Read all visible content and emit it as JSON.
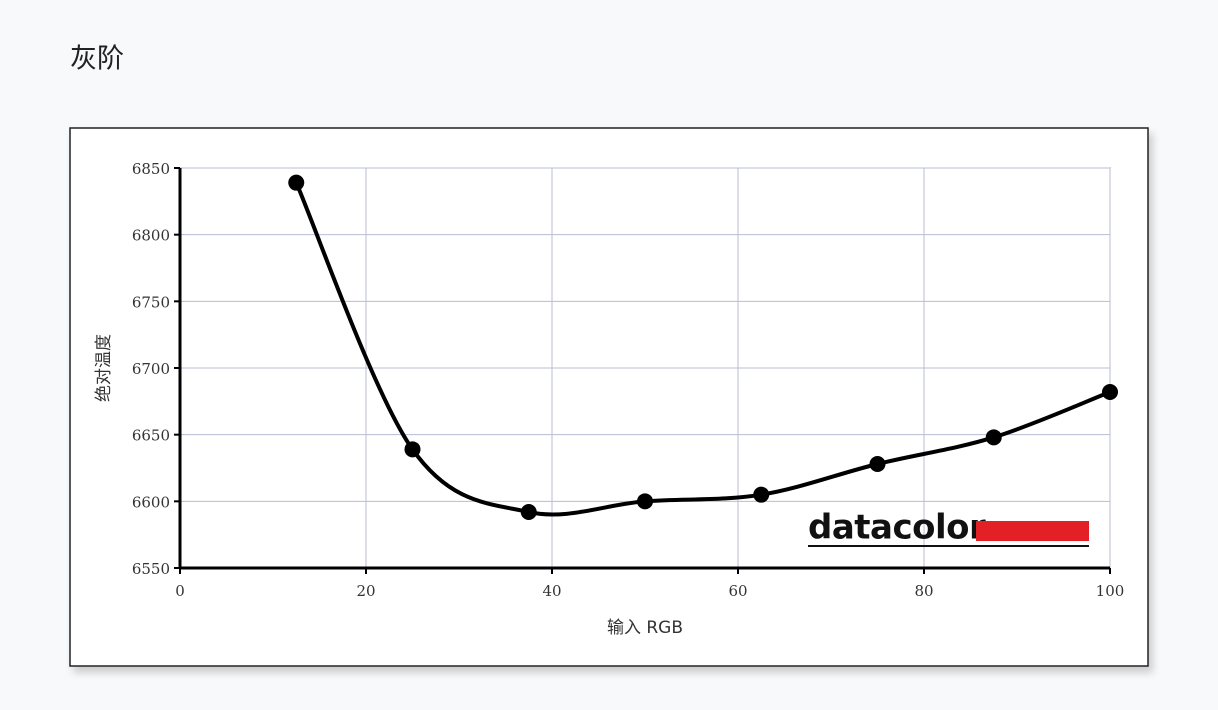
{
  "chart_data": {
    "type": "line",
    "title": "灰阶",
    "x_label": "输入 RGB",
    "y_label": "绝对温度",
    "logo": "datacolor",
    "x": [
      12.5,
      25,
      37.5,
      50,
      62.5,
      75,
      87.5,
      100
    ],
    "values": [
      6839,
      6639,
      6592,
      6600,
      6605,
      6628,
      6648,
      6682
    ],
    "color": "#000000",
    "xlim": [
      0,
      100
    ],
    "xticks": [
      0,
      20,
      40,
      60,
      80,
      100
    ],
    "ylim": [
      6550,
      6850
    ],
    "yticks": [
      6550,
      6600,
      6650,
      6700,
      6750,
      6800,
      6850
    ],
    "grid": true
  }
}
